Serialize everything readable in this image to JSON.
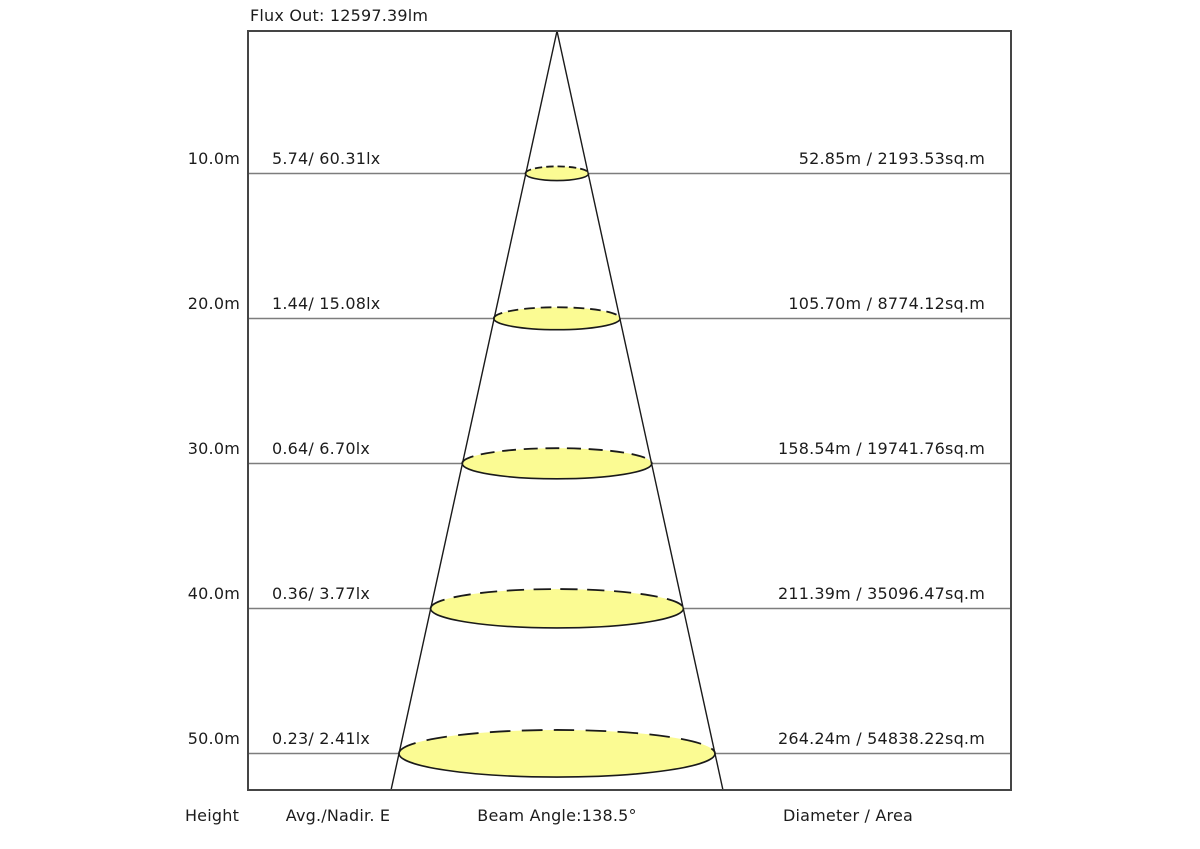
{
  "title": "Flux Out: 12597.39lm",
  "footer": {
    "height_label": "Height",
    "avg_nadir_label": "Avg./Nadir. E",
    "beam_angle_label": "Beam Angle:138.5°",
    "diameter_area_label": "Diameter / Area"
  },
  "chart_data": {
    "type": "table",
    "subtype": "photometric-beam-cone-diagram",
    "title": "Flux Out: 12597.39lm",
    "flux_out_lm": 12597.39,
    "beam_angle_deg": 138.5,
    "columns": [
      "Height",
      "Avg./Nadir. E",
      "Diameter / Area"
    ],
    "rows": [
      {
        "height_label": "10.0m",
        "height_m": 10.0,
        "avg_nadir_label": "5.74/ 60.31lx",
        "avg_lx": 5.74,
        "nadir_lx": 60.31,
        "diameter_area_label": "52.85m / 2193.53sq.m",
        "diameter_m": 52.85,
        "area_sqm": 2193.53
      },
      {
        "height_label": "20.0m",
        "height_m": 20.0,
        "avg_nadir_label": "1.44/ 15.08lx",
        "avg_lx": 1.44,
        "nadir_lx": 15.08,
        "diameter_area_label": "105.70m / 8774.12sq.m",
        "diameter_m": 105.7,
        "area_sqm": 8774.12
      },
      {
        "height_label": "30.0m",
        "height_m": 30.0,
        "avg_nadir_label": "0.64/ 6.70lx",
        "avg_lx": 0.64,
        "nadir_lx": 6.7,
        "diameter_area_label": "158.54m / 19741.76sq.m",
        "diameter_m": 158.54,
        "area_sqm": 19741.76
      },
      {
        "height_label": "40.0m",
        "height_m": 40.0,
        "avg_nadir_label": "0.36/ 3.77lx",
        "avg_lx": 0.36,
        "nadir_lx": 3.77,
        "diameter_area_label": "211.39m / 35096.47sq.m",
        "diameter_m": 211.39,
        "area_sqm": 35096.47
      },
      {
        "height_label": "50.0m",
        "height_m": 50.0,
        "avg_nadir_label": "0.23/ 2.41lx",
        "avg_lx": 0.23,
        "nadir_lx": 2.41,
        "diameter_area_label": "264.24m / 54838.22sq.m",
        "diameter_m": 264.24,
        "area_sqm": 54838.22
      }
    ],
    "axis": {
      "height_ticks_m": [
        10,
        20,
        30,
        40,
        50
      ],
      "grid": "horizontal-lines-per-height"
    },
    "legend_position": "bottom",
    "colors": {
      "spot_fill": "#fbfb93",
      "spot_stroke": "#1a1a1a",
      "grid_line": "#7d7d7d",
      "cone_line": "#1a1a1a",
      "border": "#454545",
      "text": "#1c1c1c"
    }
  }
}
